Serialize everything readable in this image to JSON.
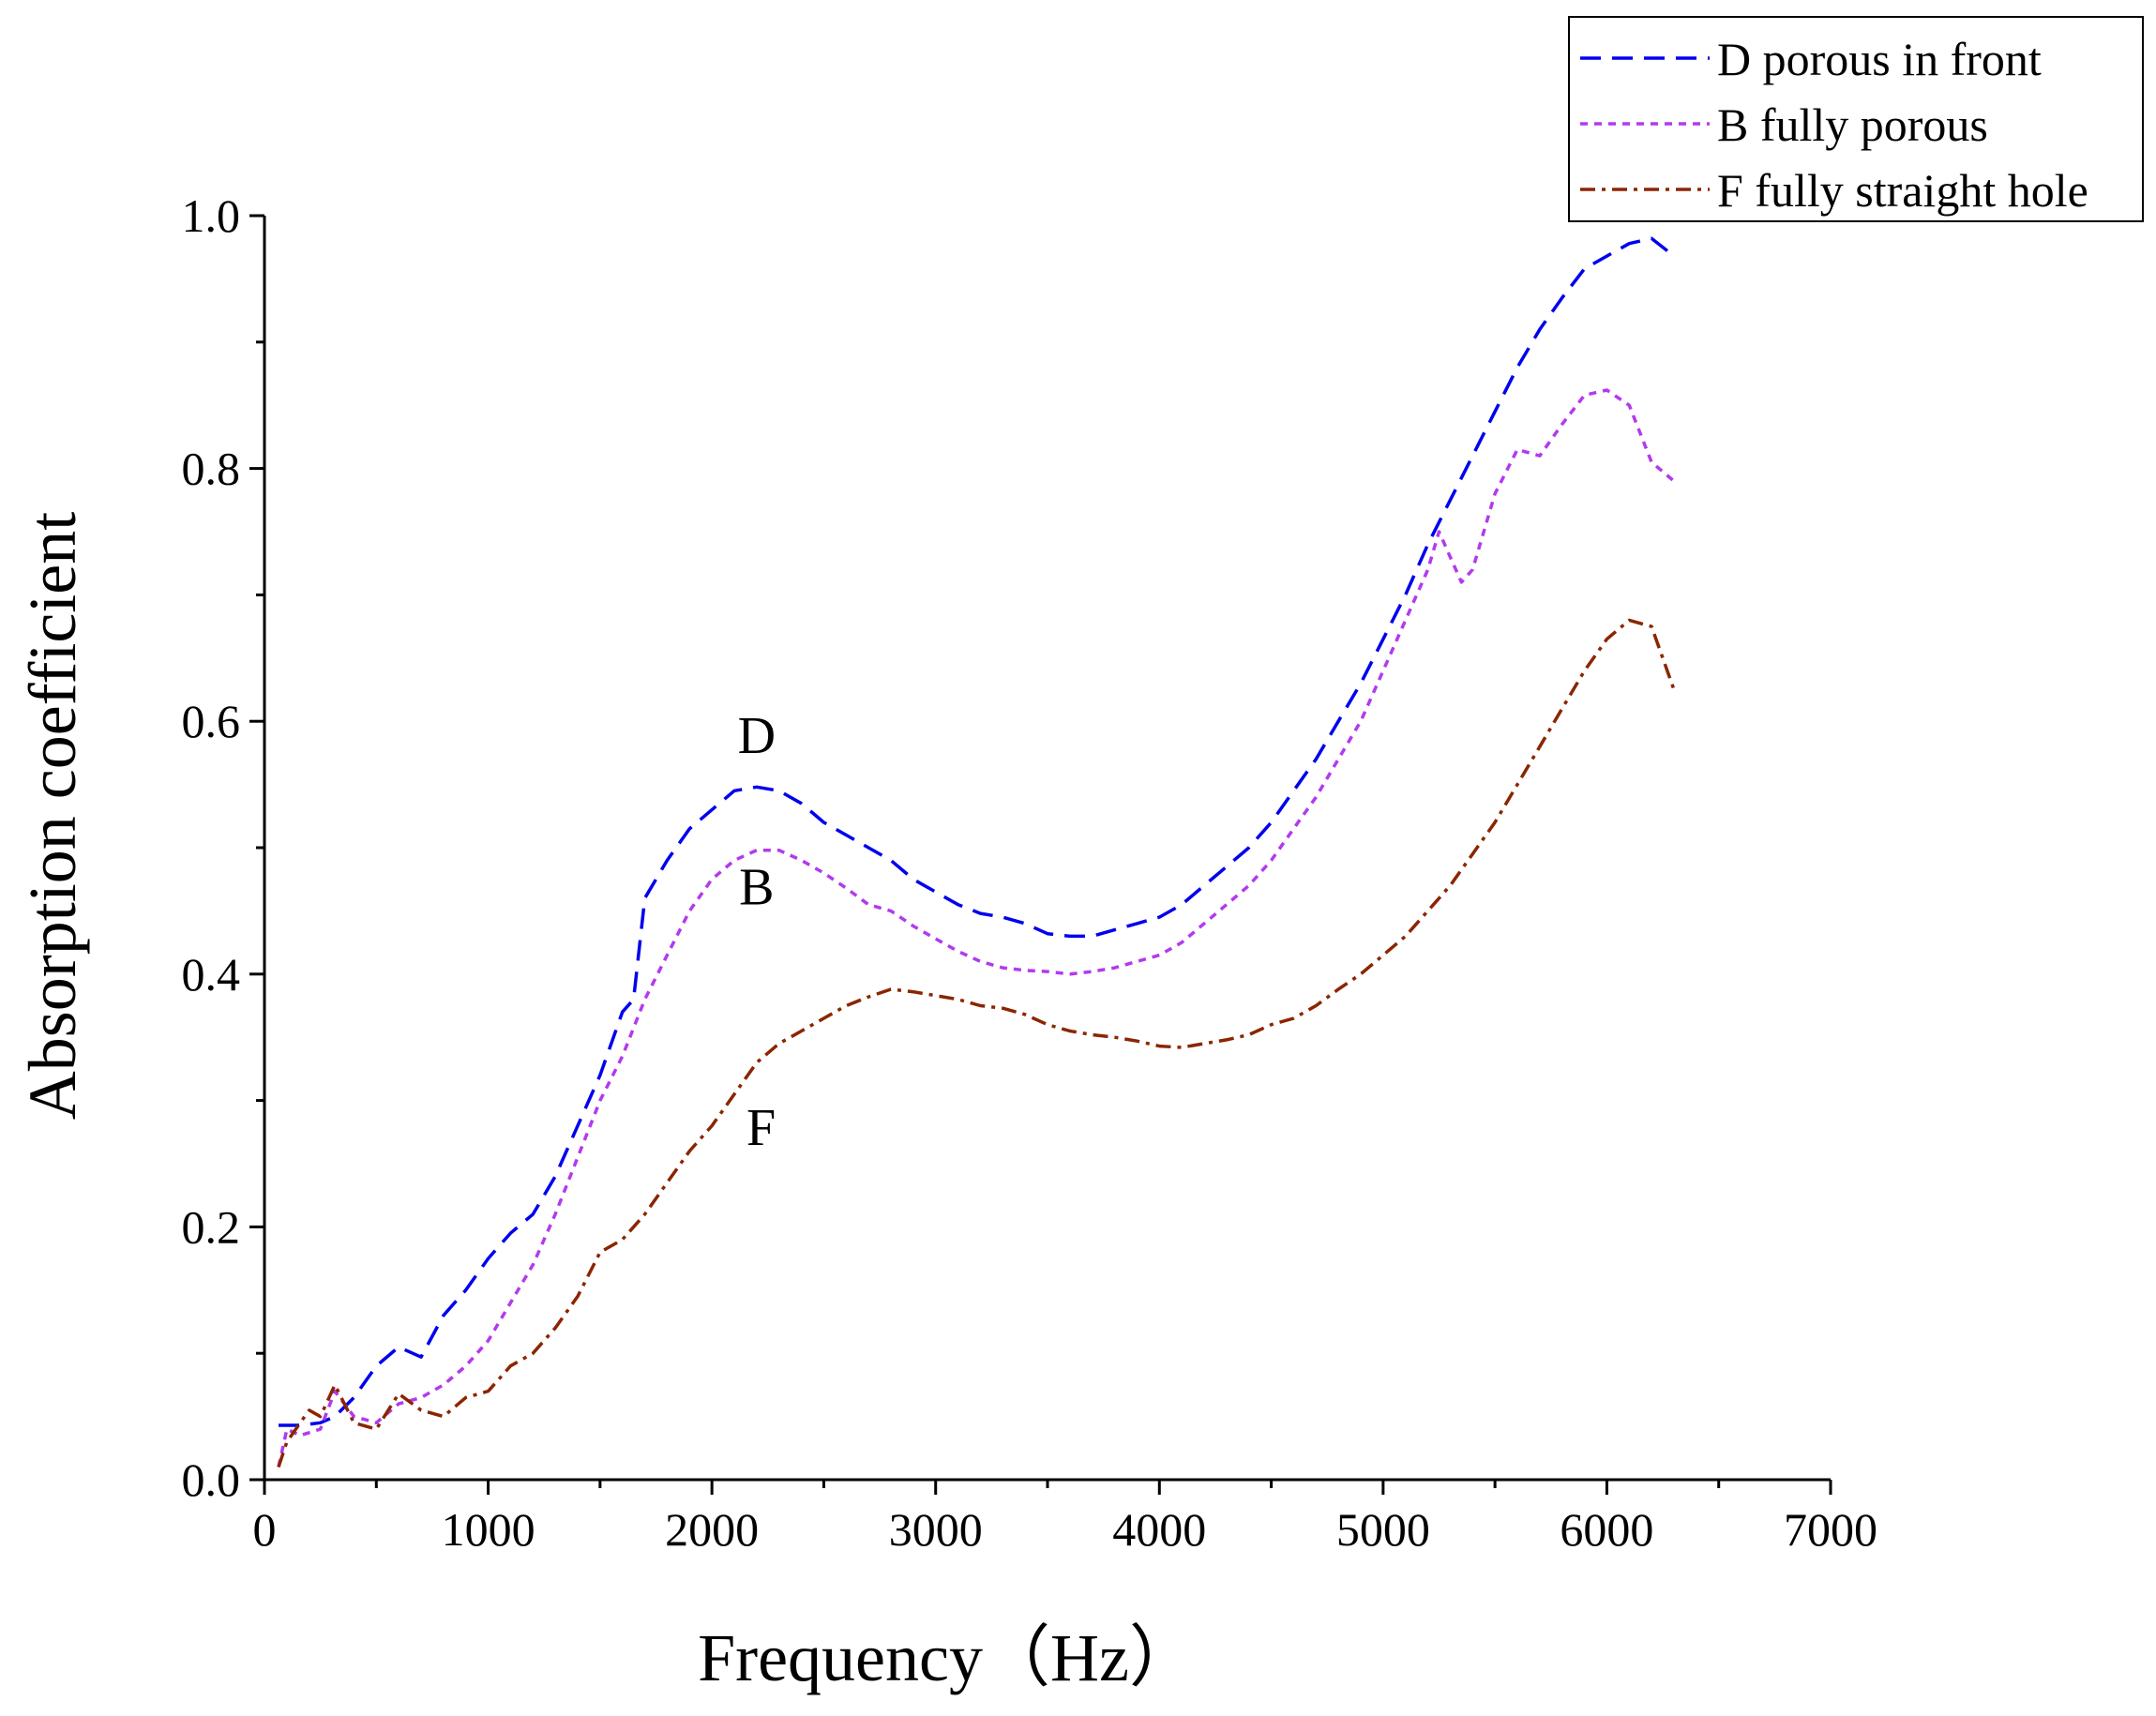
{
  "chart_data": {
    "type": "line",
    "xlabel": "Frequency（Hz）",
    "ylabel": "Absorption coefficient",
    "xlim": [
      0,
      7000
    ],
    "ylim": [
      0,
      1.0
    ],
    "xticks": [
      0,
      1000,
      2000,
      3000,
      4000,
      5000,
      6000,
      7000
    ],
    "xtick_labels": [
      "0",
      "1000",
      "2000",
      "3000",
      "4000",
      "5000",
      "6000",
      "7000"
    ],
    "yticks": [
      0.0,
      0.2,
      0.4,
      0.6,
      0.8,
      1.0
    ],
    "ytick_labels": [
      "0.0",
      "0.2",
      "0.4",
      "0.6",
      "0.8",
      "1.0"
    ],
    "grid": false,
    "legend_position": "top-right",
    "series": [
      {
        "name": "D porous in front",
        "color": "#0000ee",
        "dash": "dashed",
        "x": [
          63,
          100,
          160,
          250,
          315,
          400,
          500,
          600,
          700,
          800,
          900,
          1000,
          1100,
          1200,
          1300,
          1400,
          1500,
          1600,
          1650,
          1700,
          1800,
          1900,
          2000,
          2100,
          2200,
          2300,
          2400,
          2500,
          2600,
          2700,
          2800,
          2900,
          3000,
          3100,
          3200,
          3300,
          3400,
          3500,
          3600,
          3700,
          3800,
          3900,
          4000,
          4100,
          4200,
          4300,
          4400,
          4500,
          4600,
          4700,
          4800,
          4900,
          5000,
          5100,
          5200,
          5300,
          5400,
          5500,
          5600,
          5700,
          5800,
          5900,
          6000,
          6100,
          6200,
          6300
        ],
        "y": [
          0.043,
          0.043,
          0.043,
          0.045,
          0.05,
          0.065,
          0.09,
          0.105,
          0.097,
          0.13,
          0.15,
          0.175,
          0.195,
          0.21,
          0.24,
          0.28,
          0.32,
          0.37,
          0.38,
          0.46,
          0.49,
          0.515,
          0.53,
          0.545,
          0.548,
          0.545,
          0.535,
          0.52,
          0.51,
          0.5,
          0.49,
          0.475,
          0.465,
          0.455,
          0.448,
          0.445,
          0.44,
          0.432,
          0.43,
          0.43,
          0.435,
          0.44,
          0.445,
          0.455,
          0.47,
          0.485,
          0.5,
          0.52,
          0.545,
          0.57,
          0.6,
          0.63,
          0.665,
          0.7,
          0.74,
          0.775,
          0.81,
          0.845,
          0.88,
          0.91,
          0.935,
          0.958,
          0.968,
          0.978,
          0.982,
          0.968
        ]
      },
      {
        "name": "B fully porous",
        "color": "#b23aee",
        "dash": "dotted",
        "x": [
          63,
          100,
          160,
          250,
          315,
          400,
          500,
          600,
          700,
          800,
          900,
          1000,
          1100,
          1200,
          1300,
          1400,
          1500,
          1600,
          1700,
          1800,
          1900,
          2000,
          2100,
          2200,
          2300,
          2400,
          2500,
          2600,
          2700,
          2800,
          2900,
          3000,
          3100,
          3200,
          3300,
          3400,
          3500,
          3600,
          3700,
          3800,
          3900,
          4000,
          4100,
          4200,
          4300,
          4400,
          4500,
          4600,
          4700,
          4800,
          4900,
          5000,
          5100,
          5200,
          5250,
          5300,
          5350,
          5400,
          5500,
          5600,
          5700,
          5800,
          5900,
          6000,
          6100,
          6200,
          6300
        ],
        "y": [
          0.01,
          0.04,
          0.035,
          0.04,
          0.07,
          0.05,
          0.045,
          0.06,
          0.065,
          0.075,
          0.09,
          0.11,
          0.14,
          0.17,
          0.21,
          0.255,
          0.3,
          0.335,
          0.38,
          0.415,
          0.45,
          0.475,
          0.49,
          0.498,
          0.498,
          0.49,
          0.48,
          0.468,
          0.455,
          0.45,
          0.438,
          0.428,
          0.418,
          0.41,
          0.405,
          0.403,
          0.402,
          0.4,
          0.402,
          0.405,
          0.41,
          0.415,
          0.425,
          0.44,
          0.455,
          0.47,
          0.49,
          0.515,
          0.54,
          0.57,
          0.6,
          0.64,
          0.68,
          0.72,
          0.75,
          0.73,
          0.71,
          0.72,
          0.78,
          0.815,
          0.81,
          0.835,
          0.858,
          0.862,
          0.85,
          0.805,
          0.79
        ]
      },
      {
        "name": "F fully straight hole",
        "color": "#8b2500",
        "dash": "dash-dot",
        "x": [
          63,
          100,
          160,
          200,
          250,
          315,
          400,
          500,
          600,
          700,
          800,
          900,
          1000,
          1100,
          1200,
          1300,
          1400,
          1500,
          1600,
          1700,
          1800,
          1900,
          2000,
          2100,
          2200,
          2300,
          2400,
          2500,
          2600,
          2700,
          2800,
          2900,
          3000,
          3100,
          3200,
          3300,
          3400,
          3500,
          3600,
          3700,
          3800,
          3900,
          4000,
          4100,
          4200,
          4300,
          4400,
          4500,
          4600,
          4700,
          4800,
          4900,
          5000,
          5100,
          5200,
          5300,
          5400,
          5500,
          5600,
          5700,
          5800,
          5900,
          6000,
          6100,
          6200,
          6300
        ],
        "y": [
          0.01,
          0.03,
          0.045,
          0.055,
          0.05,
          0.075,
          0.045,
          0.04,
          0.068,
          0.055,
          0.05,
          0.065,
          0.07,
          0.09,
          0.1,
          0.12,
          0.145,
          0.18,
          0.19,
          0.21,
          0.235,
          0.26,
          0.28,
          0.305,
          0.33,
          0.345,
          0.355,
          0.365,
          0.375,
          0.382,
          0.388,
          0.386,
          0.383,
          0.38,
          0.375,
          0.373,
          0.368,
          0.36,
          0.355,
          0.352,
          0.35,
          0.347,
          0.343,
          0.342,
          0.345,
          0.348,
          0.352,
          0.36,
          0.365,
          0.375,
          0.388,
          0.4,
          0.415,
          0.43,
          0.45,
          0.47,
          0.495,
          0.52,
          0.55,
          0.58,
          0.61,
          0.64,
          0.665,
          0.68,
          0.675,
          0.625
        ]
      }
    ],
    "annotations": [
      {
        "text": "D",
        "x": 2200,
        "y": 0.575
      },
      {
        "text": "B",
        "x": 2200,
        "y": 0.455
      },
      {
        "text": "F",
        "x": 2220,
        "y": 0.265
      }
    ]
  }
}
